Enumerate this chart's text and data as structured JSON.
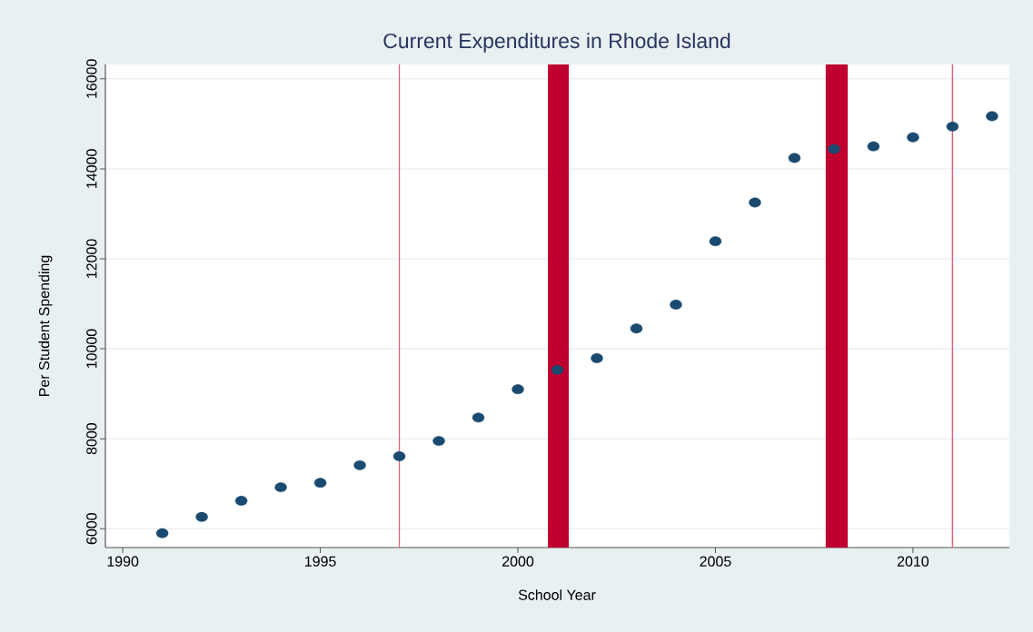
{
  "chart_data": {
    "type": "scatter",
    "title": "Current Expenditures in Rhode Island",
    "xlabel": "School Year",
    "ylabel": "Per Student Spending",
    "series": [
      {
        "color": "#1a4a70",
        "x": [
          1991,
          1992,
          1993,
          1994,
          1995,
          1996,
          1997,
          1998,
          1999,
          2000,
          2001,
          2002,
          2003,
          2004,
          2005,
          2006,
          2007,
          2008,
          2009,
          2010,
          2011,
          2012
        ],
        "values": [
          5900,
          6260,
          6620,
          6920,
          7020,
          7410,
          7610,
          7950,
          8470,
          9100,
          9530,
          9790,
          10450,
          10980,
          12390,
          13250,
          14240,
          14440,
          14500,
          14700,
          14940,
          15170
        ]
      }
    ],
    "marker": "circle",
    "xlim": [
      1989.56,
      2012.44
    ],
    "ylim": [
      5580,
      16320
    ],
    "xticks": [
      1990,
      1995,
      2000,
      2005,
      2010
    ],
    "yticks": [
      6000,
      8000,
      10000,
      12000,
      14000,
      16000
    ],
    "grid": "y",
    "ref_lines": [
      {
        "axis": "x",
        "value": 1997,
        "color": "#e0607a"
      },
      {
        "axis": "x",
        "value": 2011,
        "color": "#e0607a"
      }
    ],
    "bands": [
      {
        "axis": "x",
        "from": 2000.76,
        "to": 2001.29,
        "color": "#c0002f"
      },
      {
        "axis": "x",
        "from": 2007.79,
        "to": 2008.35,
        "color": "#c0002f"
      }
    ]
  }
}
